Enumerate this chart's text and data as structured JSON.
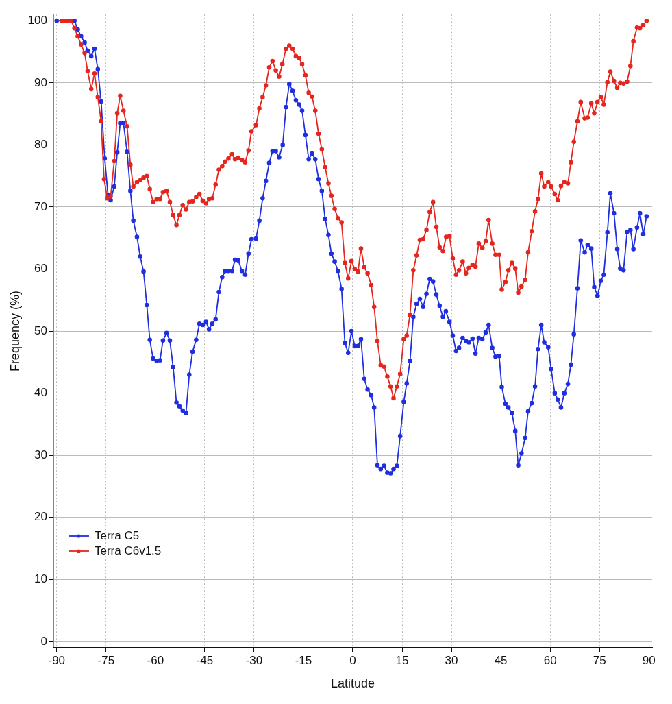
{
  "chart_data": {
    "type": "line",
    "xlabel": "Latitude",
    "ylabel": "Frequency (%)",
    "xlim": [
      -91,
      91
    ],
    "xticks": [
      -90,
      -75,
      -60,
      -45,
      -30,
      -15,
      0,
      15,
      30,
      45,
      60,
      75,
      90
    ],
    "ylim": [
      -1,
      101
    ],
    "yticks": [
      0,
      10,
      20,
      30,
      40,
      50,
      60,
      70,
      80,
      90,
      100
    ],
    "grid": true,
    "legend": "bottom left",
    "marker": "circle",
    "line_style": "solid",
    "series": [
      {
        "name": "Terra C5",
        "color": "#1f2fe0",
        "x": [
          -90,
          -84.6,
          -83.6,
          -82.6,
          -81.5,
          -80.6,
          -79.5,
          -78.5,
          -77.5,
          -76.5,
          -75.4,
          -74.4,
          -73.6,
          -72.5,
          -71.6,
          -70.7,
          -69.7,
          -68.6,
          -67.6,
          -66.7,
          -65.6,
          -64.6,
          -63.6,
          -62.6,
          -61.7,
          -60.7,
          -59.6,
          -58.6,
          -57.7,
          -56.6,
          -55.6,
          -54.6,
          -53.6,
          -52.7,
          -51.7,
          -50.7,
          -49.7,
          -48.7,
          -47.6,
          -46.6,
          -45.6,
          -44.6,
          -43.7,
          -42.7,
          -41.7,
          -40.7,
          -39.7,
          -38.8,
          -37.8,
          -36.7,
          -35.8,
          -34.8,
          -33.7,
          -32.7,
          -31.7,
          -30.8,
          -29.4,
          -28.4,
          -27.4,
          -26.4,
          -25.4,
          -24.4,
          -23.4,
          -22.4,
          -21.3,
          -20.3,
          -19.3,
          -18.3,
          -17.3,
          -16.3,
          -15.4,
          -14.4,
          -13.4,
          -12.4,
          -11.4,
          -10.4,
          -9.4,
          -8.4,
          -7.4,
          -6.5,
          -5.5,
          -4.5,
          -3.4,
          -2.4,
          -1.4,
          -0.4,
          0.6,
          1.6,
          2.5,
          3.5,
          4.5,
          5.6,
          6.5,
          7.5,
          8.5,
          9.5,
          10.5,
          11.5,
          12.4,
          13.4,
          14.4,
          15.5,
          16.4,
          17.4,
          18.4,
          19.4,
          20.4,
          21.4,
          22.4,
          23.4,
          24.4,
          25.4,
          26.4,
          27.4,
          28.3,
          29.4,
          30.4,
          31.4,
          32.3,
          33.4,
          34.4,
          35.3,
          36.4,
          37.3,
          38.3,
          39.4,
          40.4,
          41.3,
          42.4,
          43.4,
          44.5,
          45.3,
          46.4,
          47.3,
          48.4,
          49.4,
          50.3,
          51.3,
          52.4,
          53.3,
          54.4,
          55.4,
          56.3,
          57.3,
          58.2,
          59.4,
          60.3,
          61.4,
          62.3,
          63.3,
          64.3,
          65.4,
          66.3,
          67.2,
          68.3,
          69.3,
          70.5,
          71.4,
          72.5,
          73.4,
          74.4,
          75.4,
          76.3,
          77.4,
          78.3,
          79.4,
          80.4,
          81.3,
          82.3,
          83.4,
          84.4,
          85.3,
          86.4,
          87.3,
          88.3,
          89.3
        ],
        "values": [
          100,
          100,
          98.6,
          97.5,
          96.5,
          95.2,
          94.3,
          95.5,
          92.2,
          87.0,
          77.8,
          71.9,
          71.1,
          73.3,
          78.8,
          83.5,
          83.5,
          78.9,
          72.6,
          67.8,
          65.2,
          62.0,
          59.6,
          54.2,
          48.6,
          45.6,
          45.2,
          45.3,
          48.5,
          49.7,
          48.5,
          44.2,
          38.5,
          37.9,
          37.2,
          36.8,
          43.0,
          46.7,
          48.6,
          51.2,
          51.0,
          51.5,
          50.3,
          51.2,
          51.9,
          56.3,
          58.7,
          59.7,
          59.7,
          59.7,
          61.5,
          61.4,
          59.7,
          59.1,
          62.5,
          64.8,
          64.9,
          67.8,
          71.4,
          74.2,
          77.1,
          79.0,
          79.0,
          78.0,
          80.0,
          86.1,
          89.8,
          88.7,
          87.2,
          86.5,
          85.5,
          81.6,
          77.7,
          78.6,
          77.7,
          74.5,
          72.6,
          68.1,
          65.5,
          62.5,
          61.2,
          59.7,
          56.8,
          48.1,
          46.5,
          50.0,
          47.6,
          47.6,
          48.7,
          42.3,
          40.6,
          39.7,
          37.7,
          28.4,
          27.8,
          28.3,
          27.2,
          27.1,
          27.8,
          28.3,
          33.1,
          38.6,
          41.6,
          45.2,
          52.3,
          54.4,
          55.2,
          53.9,
          56.0,
          58.4,
          58.0,
          55.9,
          54.1,
          52.3,
          53.2,
          51.5,
          49.3,
          46.8,
          47.3,
          48.9,
          48.4,
          48.2,
          48.8,
          46.4,
          48.9,
          48.7,
          49.8,
          51.0,
          47.3,
          45.9,
          46.0,
          41.0,
          38.3,
          37.7,
          36.8,
          33.9,
          28.4,
          30.3,
          32.8,
          37.1,
          38.4,
          41.1,
          47.1,
          51.0,
          48.2,
          47.4,
          43.9,
          40.0,
          39.0,
          37.7,
          40.0,
          41.5,
          44.6,
          49.5,
          56.9,
          64.6,
          62.7,
          63.9,
          63.3,
          57.1,
          55.7,
          58.1,
          59.1,
          65.9,
          72.2,
          69.0,
          63.2,
          60.1,
          59.8,
          66.0,
          66.3,
          63.2,
          66.7,
          69.0,
          65.6,
          68.5
        ]
      },
      {
        "name": "Terra C6v1.5",
        "color": "#e5261f",
        "x": [
          -88.5,
          -87.5,
          -86.6,
          -85.6,
          -84.6,
          -83.6,
          -82.6,
          -81.5,
          -80.6,
          -79.5,
          -78.5,
          -77.5,
          -76.5,
          -75.6,
          -74.6,
          -73.6,
          -72.5,
          -71.6,
          -70.7,
          -69.7,
          -68.6,
          -67.6,
          -66.7,
          -65.6,
          -64.6,
          -63.6,
          -62.6,
          -61.7,
          -60.7,
          -59.6,
          -58.6,
          -57.7,
          -56.6,
          -55.6,
          -54.6,
          -53.6,
          -52.7,
          -51.7,
          -50.7,
          -49.7,
          -48.7,
          -47.6,
          -46.6,
          -45.6,
          -44.6,
          -43.7,
          -42.7,
          -41.7,
          -40.7,
          -39.7,
          -38.8,
          -37.8,
          -36.7,
          -35.8,
          -34.8,
          -33.7,
          -32.7,
          -31.7,
          -30.8,
          -29.4,
          -28.4,
          -27.4,
          -26.4,
          -25.4,
          -24.4,
          -23.4,
          -22.4,
          -21.4,
          -20.3,
          -19.3,
          -18.3,
          -17.3,
          -16.3,
          -15.4,
          -14.4,
          -13.4,
          -12.4,
          -11.4,
          -10.4,
          -9.4,
          -8.4,
          -7.4,
          -6.5,
          -5.5,
          -4.5,
          -3.4,
          -2.4,
          -1.4,
          -0.4,
          0.6,
          1.6,
          2.5,
          3.5,
          4.5,
          5.6,
          6.5,
          7.5,
          8.5,
          9.5,
          10.5,
          11.5,
          12.4,
          13.4,
          14.4,
          15.5,
          16.4,
          17.4,
          18.4,
          19.4,
          20.4,
          21.4,
          22.4,
          23.4,
          24.4,
          25.4,
          26.4,
          27.4,
          28.4,
          29.4,
          30.4,
          31.4,
          32.3,
          33.4,
          34.4,
          35.3,
          36.4,
          37.3,
          38.3,
          39.4,
          40.4,
          41.3,
          42.4,
          43.4,
          44.5,
          45.3,
          46.4,
          47.3,
          48.4,
          49.4,
          50.3,
          51.3,
          52.4,
          53.3,
          54.4,
          55.4,
          56.3,
          57.3,
          58.2,
          59.4,
          60.3,
          61.4,
          62.3,
          63.3,
          64.3,
          65.4,
          66.3,
          67.2,
          68.3,
          69.3,
          70.5,
          71.4,
          72.5,
          73.4,
          74.4,
          75.4,
          76.3,
          77.4,
          78.3,
          79.4,
          80.4,
          81.3,
          82.3,
          83.4,
          84.4,
          85.3,
          86.4,
          87.3,
          88.3,
          89.3
        ],
        "values": [
          100,
          100,
          100,
          100,
          98.8,
          97.5,
          96.2,
          94.8,
          91.9,
          89.0,
          91.5,
          87.7,
          83.8,
          74.5,
          71.4,
          71.7,
          77.4,
          85.1,
          87.9,
          85.5,
          83.0,
          76.8,
          73.3,
          74.0,
          74.3,
          74.7,
          75.0,
          72.9,
          70.8,
          71.3,
          71.3,
          72.4,
          72.6,
          70.8,
          68.7,
          67.1,
          68.7,
          70.3,
          69.6,
          70.8,
          70.9,
          71.6,
          72.1,
          71.0,
          70.6,
          71.3,
          71.4,
          73.6,
          76.0,
          76.6,
          77.3,
          77.8,
          78.5,
          77.7,
          77.9,
          77.6,
          77.2,
          79.1,
          82.2,
          83.2,
          85.9,
          87.7,
          89.6,
          92.5,
          93.5,
          92.0,
          91.0,
          93.0,
          95.5,
          96.0,
          95.5,
          94.3,
          94.0,
          93.0,
          91.2,
          88.4,
          87.8,
          85.5,
          81.8,
          79.3,
          76.4,
          73.8,
          71.8,
          69.7,
          68.2,
          67.5,
          61.0,
          58.5,
          61.3,
          60.0,
          59.6,
          63.3,
          60.3,
          59.3,
          57.4,
          53.9,
          48.4,
          44.5,
          44.3,
          42.7,
          41.1,
          39.2,
          41.1,
          43.1,
          48.7,
          49.3,
          52.6,
          59.8,
          62.2,
          64.7,
          64.8,
          66.3,
          69.2,
          70.8,
          66.8,
          63.5,
          62.9,
          65.2,
          65.3,
          61.7,
          59.1,
          59.8,
          61.2,
          59.3,
          60.2,
          60.7,
          60.4,
          64.1,
          63.4,
          64.5,
          67.9,
          64.1,
          62.3,
          62.3,
          56.7,
          57.9,
          59.8,
          61.0,
          60.1,
          56.2,
          57.2,
          58.3,
          62.7,
          66.1,
          69.3,
          71.3,
          75.4,
          73.3,
          74.0,
          73.3,
          72.1,
          71.1,
          73.4,
          74.0,
          73.8,
          77.2,
          80.5,
          83.8,
          86.9,
          84.3,
          84.4,
          86.7,
          85.1,
          86.9,
          87.7,
          86.5,
          90.1,
          91.8,
          90.3,
          89.2,
          90.0,
          89.9,
          90.2,
          92.7,
          96.7,
          98.9,
          98.8,
          99.3,
          100
        ]
      }
    ]
  }
}
